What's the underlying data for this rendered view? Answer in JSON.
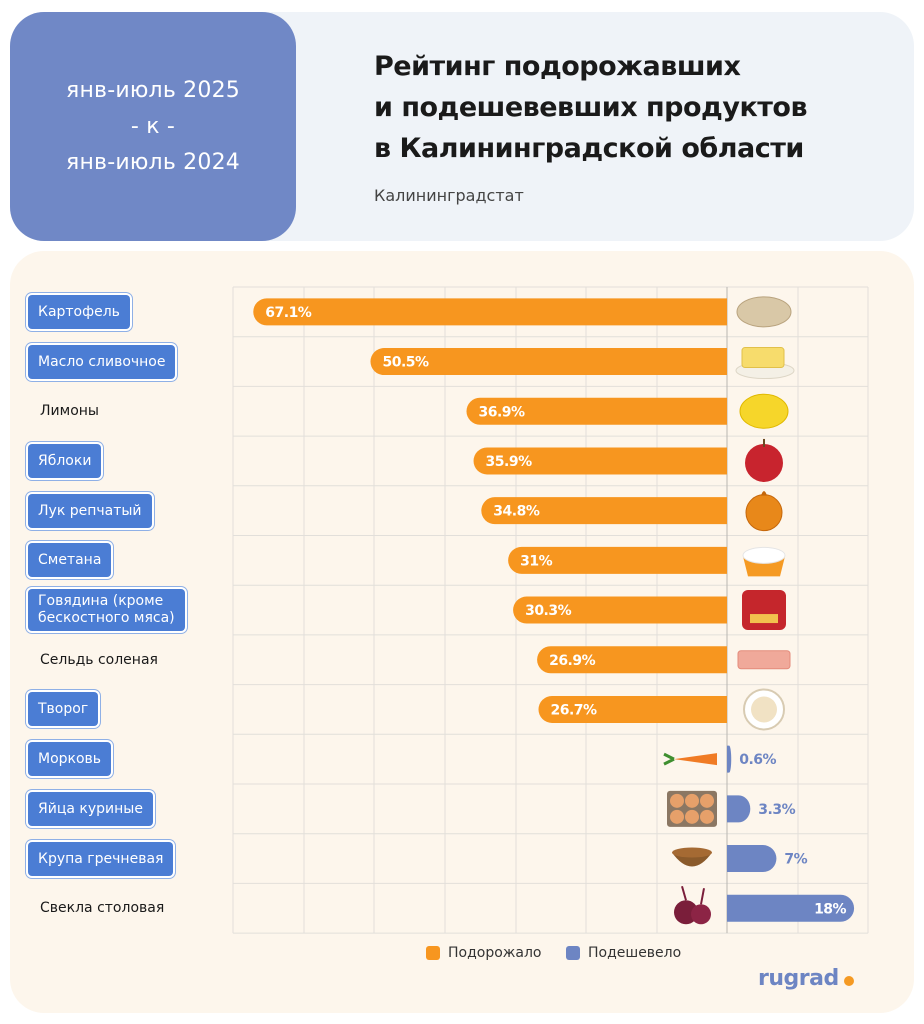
{
  "header": {
    "period_line1": "янв-июль 2025",
    "period_line2": "- к -",
    "period_line3": "янв-июль 2024",
    "title_line1": "Рейтинг подорожавших",
    "title_line2": "и подешевевших продуктов",
    "title_line3": "в Калининградской области",
    "source": "Калининградстат"
  },
  "chart_data": {
    "type": "bar",
    "orientation": "horizontal",
    "categories": [
      "Картофель",
      "Масло сливочное",
      "Лимоны",
      "Яблоки",
      "Лук репчатый",
      "Сметана",
      "Говядина (кроме бескостного мяса)",
      "Сельдь соленая",
      "Творог",
      "Морковь",
      "Яйца куриные",
      "Крупа гречневая",
      "Свекла столовая"
    ],
    "series": [
      {
        "name": "Подорожало",
        "color": "#f7961f",
        "values": [
          67.1,
          50.5,
          36.9,
          35.9,
          34.8,
          31,
          30.3,
          26.9,
          26.7,
          null,
          null,
          null,
          null
        ],
        "labels": [
          "67.1%",
          "50.5%",
          "36.9%",
          "35.9%",
          "34.8%",
          "31%",
          "30.3%",
          "26.9%",
          "26.7%",
          "",
          "",
          "",
          ""
        ]
      },
      {
        "name": "Подешевело",
        "color": "#6d85c3",
        "values": [
          null,
          null,
          null,
          null,
          null,
          null,
          null,
          null,
          null,
          0.6,
          3.3,
          7,
          18
        ],
        "labels": [
          "",
          "",
          "",
          "",
          "",
          "",
          "",
          "",
          "",
          "0.6%",
          "3.3%",
          "7%",
          "18%"
        ]
      }
    ],
    "boxed_categories": [
      true,
      true,
      false,
      true,
      true,
      true,
      true,
      false,
      true,
      true,
      true,
      true,
      false
    ],
    "product_icons": [
      "potato",
      "butter",
      "lemon",
      "apple",
      "onion",
      "sour-cream",
      "canned-beef",
      "herring",
      "cottage-cheese",
      "carrot",
      "eggs",
      "buckwheat",
      "beet"
    ],
    "legend_position": "bottom",
    "grid": true
  },
  "legend": {
    "up_label": "Подорожало",
    "down_label": "Подешевело"
  },
  "brand": {
    "name": "rugrad"
  }
}
